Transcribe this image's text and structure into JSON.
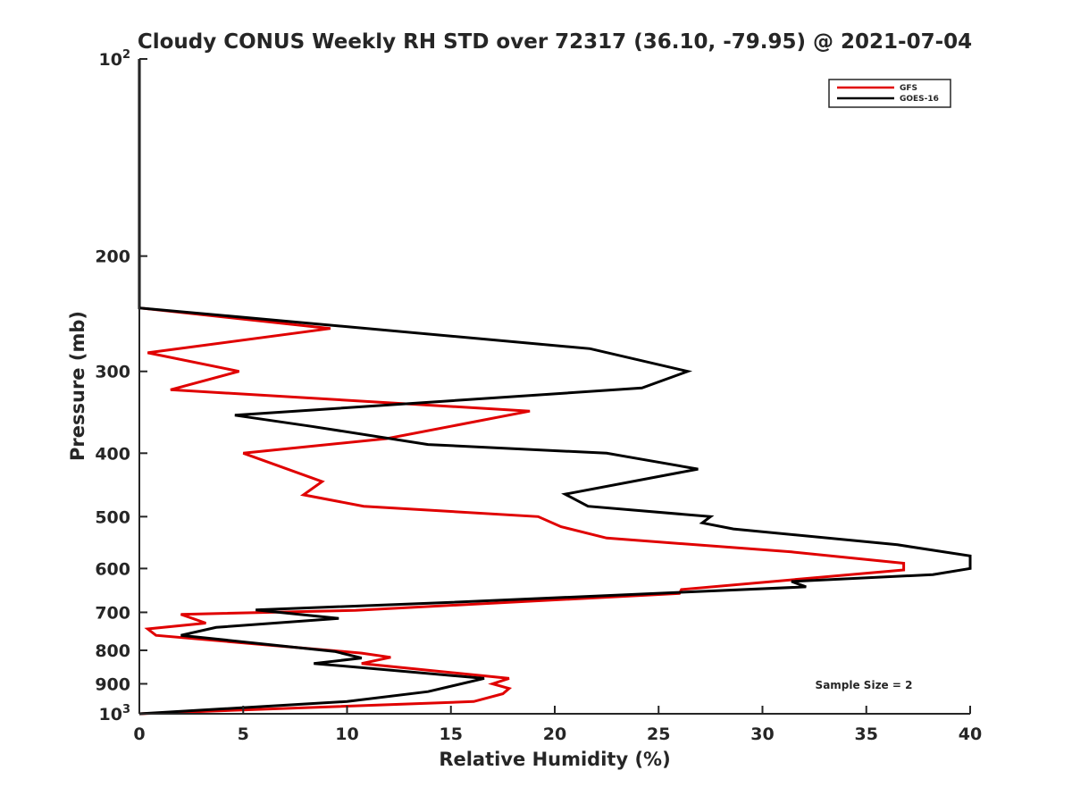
{
  "chart_data": {
    "type": "line",
    "title": "Cloudy CONUS Weekly RH STD over 72317 (36.10, -79.95) @ 2021-07-04",
    "xlabel": "Relative Humidity (%)",
    "ylabel": "Pressure (mb)",
    "xlim": [
      0,
      40
    ],
    "ylim": [
      100,
      1000
    ],
    "y_scale": "log",
    "y_reversed": true,
    "grid": false,
    "legend": "top-right",
    "x_ticks": [
      "0",
      "5",
      "10",
      "15",
      "20",
      "25",
      "30",
      "35",
      "40"
    ],
    "x_tick_values": [
      0,
      5,
      10,
      15,
      20,
      25,
      30,
      35,
      40
    ],
    "y_ticks": [
      {
        "value": 100,
        "base": "10",
        "exp": "2"
      },
      {
        "value": 200,
        "label": "200"
      },
      {
        "value": 300,
        "label": "300"
      },
      {
        "value": 400,
        "label": "400"
      },
      {
        "value": 500,
        "label": "500"
      },
      {
        "value": 600,
        "label": "600"
      },
      {
        "value": 700,
        "label": "700"
      },
      {
        "value": 800,
        "label": "800"
      },
      {
        "value": 900,
        "label": "900"
      },
      {
        "value": 1000,
        "base": "10",
        "exp": "3"
      }
    ],
    "annotation": "Sample Size = 2",
    "series": [
      {
        "name": "GFS",
        "color": "#e00000",
        "points": [
          [
            0,
            100
          ],
          [
            0,
            150
          ],
          [
            0,
            200
          ],
          [
            0,
            240
          ],
          [
            9.2,
            258
          ],
          [
            0.4,
            281
          ],
          [
            4.8,
            300
          ],
          [
            1.5,
            320
          ],
          [
            18.8,
            345
          ],
          [
            11.9,
            380
          ],
          [
            5.0,
            400
          ],
          [
            8.8,
            442
          ],
          [
            7.9,
            463
          ],
          [
            10.8,
            482
          ],
          [
            19.2,
            500
          ],
          [
            20.3,
            518
          ],
          [
            22.5,
            539
          ],
          [
            31.4,
            566
          ],
          [
            36.8,
            589
          ],
          [
            36.8,
            603
          ],
          [
            26.1,
            646
          ],
          [
            26.0,
            655
          ],
          [
            10.4,
            695
          ],
          [
            2.0,
            705
          ],
          [
            3.2,
            727
          ],
          [
            0.4,
            742
          ],
          [
            0.8,
            759
          ],
          [
            10.7,
            808
          ],
          [
            12.1,
            820
          ],
          [
            10.7,
            838
          ],
          [
            17.8,
            883
          ],
          [
            17.0,
            900
          ],
          [
            17.8,
            915
          ],
          [
            17.5,
            932
          ],
          [
            16.1,
            958
          ],
          [
            0,
            1000
          ]
        ]
      },
      {
        "name": "GOES-16",
        "color": "#000000",
        "points": [
          [
            0,
            100
          ],
          [
            0,
            150
          ],
          [
            0,
            200
          ],
          [
            0,
            240
          ],
          [
            21.7,
            277
          ],
          [
            26.4,
            300
          ],
          [
            24.2,
            318
          ],
          [
            4.6,
            350
          ],
          [
            8.3,
            364
          ],
          [
            13.9,
            388
          ],
          [
            22.5,
            400
          ],
          [
            26.9,
            423
          ],
          [
            20.5,
            462
          ],
          [
            21.6,
            482
          ],
          [
            27.5,
            500
          ],
          [
            27.1,
            511
          ],
          [
            28.6,
            522
          ],
          [
            36.5,
            552
          ],
          [
            40.0,
            574
          ],
          [
            40.0,
            600
          ],
          [
            38.2,
            613
          ],
          [
            31.4,
            628
          ],
          [
            32.1,
            640
          ],
          [
            14.5,
            677
          ],
          [
            5.6,
            694
          ],
          [
            9.6,
            715
          ],
          [
            3.7,
            738
          ],
          [
            2.0,
            759
          ],
          [
            9.4,
            803
          ],
          [
            10.7,
            822
          ],
          [
            8.4,
            838
          ],
          [
            16.6,
            883
          ],
          [
            13.9,
            925
          ],
          [
            10.0,
            958
          ],
          [
            0,
            1000
          ]
        ]
      }
    ]
  }
}
